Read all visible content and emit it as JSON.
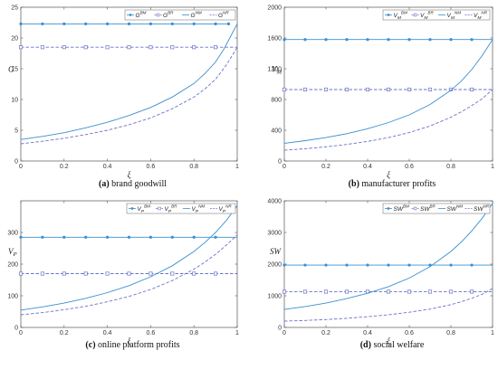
{
  "chart_data": [
    {
      "type": "line",
      "panel": "a",
      "caption_letter": "(a)",
      "caption_text": " brand goodwill",
      "ylabel": "G",
      "xlabel": "ξ",
      "xlim": [
        0,
        1
      ],
      "ylim": [
        0,
        25
      ],
      "xticks": [
        "0",
        "0.2",
        "0.4",
        "0.6",
        "0.8",
        "1"
      ],
      "yticks": [
        "0",
        "5",
        "10",
        "15",
        "20",
        "25"
      ],
      "yticks_values": [
        0,
        5,
        10,
        15,
        20,
        25
      ],
      "grid": false,
      "legend_position": "top-right",
      "series": [
        {
          "name": "G^BM",
          "base": "G",
          "sup": "BM",
          "style": "solid-dot",
          "color": "#3a8fd0",
          "x": [
            0,
            0.1,
            0.2,
            0.3,
            0.4,
            0.5,
            0.6,
            0.7,
            0.8,
            0.9,
            0.96
          ],
          "y": [
            22.3,
            22.3,
            22.3,
            22.3,
            22.3,
            22.3,
            22.3,
            22.3,
            22.3,
            22.3,
            22.3
          ]
        },
        {
          "name": "G^BR",
          "base": "G",
          "sup": "BR",
          "style": "dashed-square",
          "color": "#6a72c8",
          "x": [
            0,
            0.1,
            0.2,
            0.3,
            0.4,
            0.5,
            0.6,
            0.7,
            0.8,
            0.9,
            1.0
          ],
          "y": [
            18.5,
            18.5,
            18.5,
            18.5,
            18.5,
            18.5,
            18.5,
            18.5,
            18.5,
            18.5,
            18.5
          ]
        },
        {
          "name": "G^NM",
          "base": "G",
          "sup": "NM",
          "style": "solid",
          "color": "#3a8fd0",
          "x": [
            0,
            0.1,
            0.2,
            0.3,
            0.4,
            0.5,
            0.6,
            0.7,
            0.8,
            0.85,
            0.9,
            0.94,
            0.97,
            1.0
          ],
          "y": [
            3.5,
            4.0,
            4.6,
            5.4,
            6.3,
            7.4,
            8.7,
            10.4,
            12.6,
            14.2,
            16.1,
            18.3,
            20.3,
            22.3
          ]
        },
        {
          "name": "G^NR",
          "base": "G",
          "sup": "NR",
          "style": "dashed",
          "color": "#6a72c8",
          "x": [
            0,
            0.1,
            0.2,
            0.3,
            0.4,
            0.5,
            0.6,
            0.7,
            0.8,
            0.85,
            0.9,
            0.95,
            1.0
          ],
          "y": [
            2.8,
            3.2,
            3.7,
            4.3,
            5.0,
            5.9,
            7.0,
            8.5,
            10.4,
            11.7,
            13.3,
            15.6,
            18.5
          ]
        }
      ]
    },
    {
      "type": "line",
      "panel": "b",
      "caption_letter": "(b)",
      "caption_text": " manufacturer profits",
      "ylabel": "V",
      "ylabel_sub": "M",
      "xlabel": "ξ",
      "xlim": [
        0,
        1
      ],
      "ylim": [
        0,
        2000
      ],
      "xticks": [
        "0",
        "0.2",
        "0.4",
        "0.6",
        "0.8",
        "1"
      ],
      "yticks": [
        "0",
        "400",
        "800",
        "1200",
        "1600",
        "2000"
      ],
      "yticks_values": [
        0,
        400,
        800,
        1200,
        1600,
        2000
      ],
      "grid": false,
      "legend_position": "top-right",
      "series": [
        {
          "name": "V_M^BM",
          "base": "V",
          "sub": "M",
          "sup": "BM",
          "style": "solid-dot",
          "color": "#3a8fd0",
          "x": [
            0,
            0.1,
            0.2,
            0.3,
            0.4,
            0.5,
            0.6,
            0.7,
            0.8,
            0.9,
            1.0
          ],
          "y": [
            1580,
            1580,
            1580,
            1580,
            1580,
            1580,
            1580,
            1580,
            1580,
            1580,
            1580
          ]
        },
        {
          "name": "V_M^BR",
          "base": "V",
          "sub": "M",
          "sup": "BR",
          "style": "dashed-square",
          "color": "#6a72c8",
          "x": [
            0,
            0.1,
            0.2,
            0.3,
            0.4,
            0.5,
            0.6,
            0.7,
            0.8,
            0.9,
            1.0
          ],
          "y": [
            930,
            930,
            930,
            930,
            930,
            930,
            930,
            930,
            930,
            930,
            930
          ]
        },
        {
          "name": "V_M^NM",
          "base": "V",
          "sub": "M",
          "sup": "NM",
          "style": "solid",
          "color": "#3a8fd0",
          "x": [
            0,
            0.1,
            0.2,
            0.3,
            0.4,
            0.5,
            0.6,
            0.7,
            0.8,
            0.85,
            0.9,
            0.95,
            1.0
          ],
          "y": [
            230,
            265,
            305,
            355,
            420,
            500,
            600,
            735,
            920,
            1040,
            1190,
            1370,
            1580
          ]
        },
        {
          "name": "V_M^NR",
          "base": "V",
          "sub": "M",
          "sup": "NR",
          "style": "dashed",
          "color": "#6a72c8",
          "x": [
            0,
            0.1,
            0.2,
            0.3,
            0.4,
            0.5,
            0.6,
            0.7,
            0.8,
            0.85,
            0.9,
            0.95,
            1.0
          ],
          "y": [
            140,
            160,
            185,
            215,
            255,
            305,
            370,
            455,
            570,
            640,
            720,
            810,
            930
          ]
        }
      ]
    },
    {
      "type": "line",
      "panel": "c",
      "caption_letter": "(c)",
      "caption_text": " online platform profits",
      "ylabel": "V",
      "ylabel_sub": "P",
      "xlabel": "ξ",
      "xlim": [
        0,
        1
      ],
      "ylim": [
        0,
        400
      ],
      "xticks": [
        "0",
        "0.2",
        "0.4",
        "0.6",
        "0.8",
        "1"
      ],
      "yticks": [
        "0",
        "100",
        "200",
        "300"
      ],
      "yticks_values": [
        0,
        100,
        200,
        300
      ],
      "grid": false,
      "legend_position": "top-right",
      "series": [
        {
          "name": "V_P^BM",
          "base": "V",
          "sub": "P",
          "sup": "BM",
          "style": "solid-dot",
          "color": "#3a8fd0",
          "x": [
            0,
            0.1,
            0.2,
            0.3,
            0.4,
            0.5,
            0.6,
            0.7,
            0.8,
            0.9,
            1.0
          ],
          "y": [
            285,
            285,
            285,
            285,
            285,
            285,
            285,
            285,
            285,
            285,
            285
          ]
        },
        {
          "name": "V_P^BR",
          "base": "V",
          "sub": "P",
          "sup": "BR",
          "style": "dashed-square",
          "color": "#6a72c8",
          "x": [
            0,
            0.1,
            0.2,
            0.3,
            0.4,
            0.5,
            0.6,
            0.7,
            0.8,
            0.9,
            1.0
          ],
          "y": [
            170,
            170,
            170,
            170,
            170,
            170,
            170,
            170,
            170,
            170,
            170
          ]
        },
        {
          "name": "V_P^NM",
          "base": "V",
          "sub": "P",
          "sup": "NM",
          "style": "solid",
          "color": "#3a8fd0",
          "x": [
            0,
            0.1,
            0.2,
            0.3,
            0.4,
            0.5,
            0.6,
            0.7,
            0.8,
            0.85,
            0.9,
            0.95,
            1.0
          ],
          "y": [
            55,
            65,
            77,
            92,
            110,
            132,
            160,
            195,
            240,
            268,
            300,
            338,
            385
          ]
        },
        {
          "name": "V_P^NR",
          "base": "V",
          "sub": "P",
          "sup": "NR",
          "style": "dashed",
          "color": "#6a72c8",
          "x": [
            0,
            0.1,
            0.2,
            0.3,
            0.4,
            0.5,
            0.6,
            0.7,
            0.8,
            0.85,
            0.9,
            0.95,
            1.0
          ],
          "y": [
            40,
            47,
            56,
            67,
            81,
            98,
            120,
            148,
            184,
            206,
            231,
            260,
            292
          ]
        }
      ]
    },
    {
      "type": "line",
      "panel": "d",
      "caption_letter": "(d)",
      "caption_text": " social welfare",
      "ylabel": "SW",
      "xlabel": "ξ",
      "xlim": [
        0,
        1
      ],
      "ylim": [
        0,
        4000
      ],
      "xticks": [
        "0",
        "0.2",
        "0.4",
        "0.6",
        "0.8",
        "1"
      ],
      "yticks": [
        "0",
        "1000",
        "2000",
        "3000",
        "4000"
      ],
      "yticks_values": [
        0,
        1000,
        2000,
        3000,
        4000
      ],
      "grid": false,
      "legend_position": "top-right",
      "series": [
        {
          "name": "SW^BM",
          "base": "SW",
          "sup": "BM",
          "style": "solid-dot",
          "color": "#3a8fd0",
          "x": [
            0,
            0.1,
            0.2,
            0.3,
            0.4,
            0.5,
            0.6,
            0.7,
            0.8,
            0.9,
            1.0
          ],
          "y": [
            1970,
            1970,
            1970,
            1970,
            1970,
            1970,
            1970,
            1970,
            1970,
            1970,
            1970
          ]
        },
        {
          "name": "SW^BR",
          "base": "SW",
          "sup": "BR",
          "style": "dashed-square",
          "color": "#6a72c8",
          "x": [
            0,
            0.1,
            0.2,
            0.3,
            0.4,
            0.5,
            0.6,
            0.7,
            0.8,
            0.9,
            1.0
          ],
          "y": [
            1130,
            1130,
            1130,
            1130,
            1130,
            1130,
            1130,
            1130,
            1130,
            1130,
            1130
          ]
        },
        {
          "name": "SW^NM",
          "base": "SW",
          "sup": "NM",
          "style": "solid",
          "color": "#3a8fd0",
          "x": [
            0,
            0.1,
            0.2,
            0.3,
            0.4,
            0.5,
            0.6,
            0.7,
            0.8,
            0.85,
            0.9,
            0.95,
            1.0
          ],
          "y": [
            570,
            660,
            770,
            910,
            1080,
            1290,
            1560,
            1920,
            2400,
            2700,
            3050,
            3450,
            3920
          ]
        },
        {
          "name": "SW^NR",
          "base": "SW",
          "sup": "NR",
          "style": "dashed",
          "color": "#6a72c8",
          "x": [
            0,
            0.1,
            0.2,
            0.3,
            0.4,
            0.5,
            0.6,
            0.7,
            0.8,
            0.85,
            0.9,
            0.95,
            1.0
          ],
          "y": [
            200,
            220,
            250,
            290,
            340,
            400,
            480,
            580,
            720,
            810,
            920,
            1050,
            1230
          ]
        }
      ]
    }
  ]
}
